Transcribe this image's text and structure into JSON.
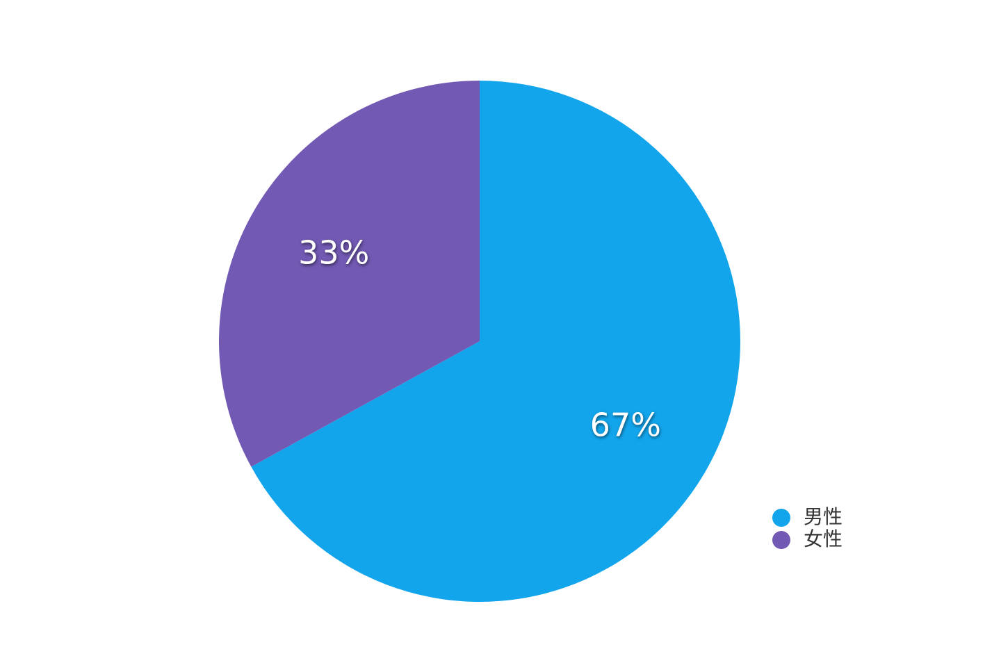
{
  "chart_data": {
    "type": "pie",
    "categories": [
      "男性",
      "女性"
    ],
    "values": [
      67,
      33
    ],
    "value_labels": [
      "67%",
      "33%"
    ],
    "colors": [
      "#12a5ec",
      "#7259b3"
    ],
    "legend": "bottom-right"
  }
}
